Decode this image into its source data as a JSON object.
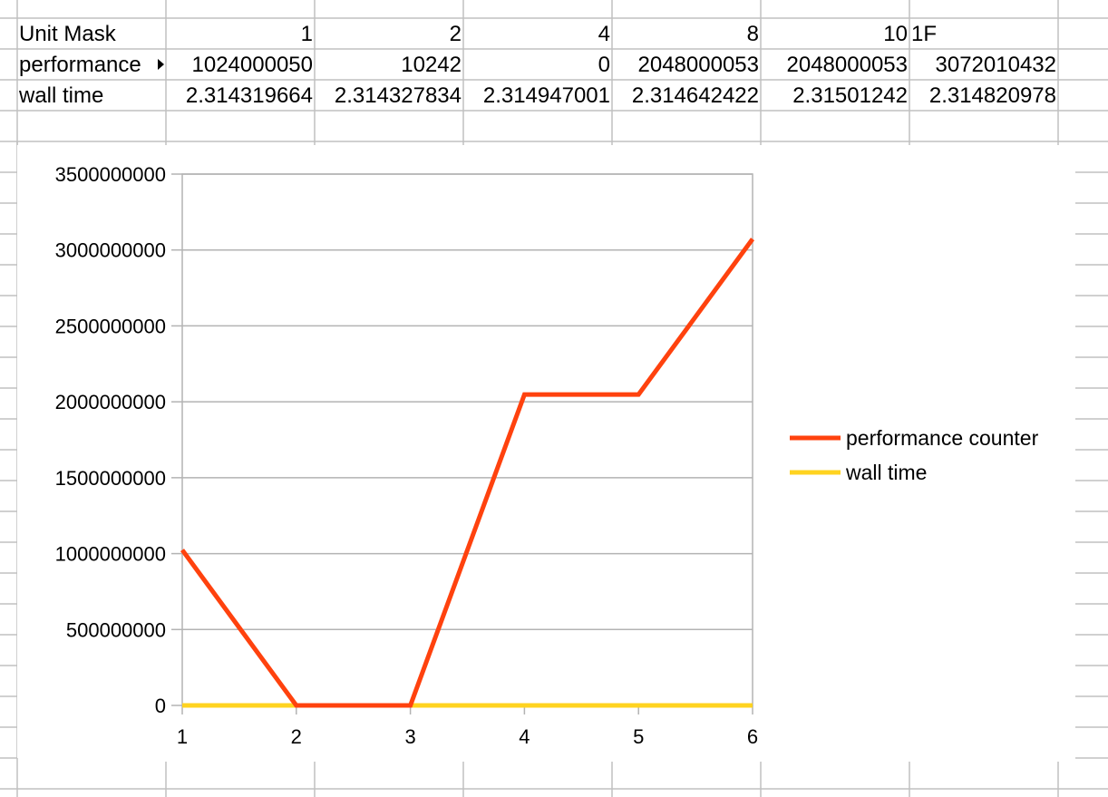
{
  "spreadsheet": {
    "rows": [
      {
        "label": "Unit Mask",
        "has_comment": false,
        "cells": [
          "1",
          "2",
          "4",
          "8",
          "10",
          "1F"
        ]
      },
      {
        "label": "performance",
        "has_comment": true,
        "cells": [
          "1024000050",
          "10242",
          "0",
          "2048000053",
          "2048000053",
          "3072010432"
        ]
      },
      {
        "label": "wall time",
        "has_comment": false,
        "cells": [
          "2.314319664",
          "2.314327834",
          "2.314947001",
          "2.314642422",
          "2.31501242",
          "2.314820978"
        ]
      }
    ]
  },
  "chart_data": {
    "type": "line",
    "title": "",
    "xlabel": "",
    "ylabel": "",
    "x": [
      1,
      2,
      3,
      4,
      5,
      6
    ],
    "x_tick_labels": [
      "1",
      "2",
      "3",
      "4",
      "5",
      "6"
    ],
    "ylim": [
      0,
      3500000000
    ],
    "y_tick_labels": [
      "0",
      "500000000",
      "1000000000",
      "1500000000",
      "2000000000",
      "2500000000",
      "3000000000",
      "3500000000"
    ],
    "y_ticks": [
      0,
      500000000,
      1000000000,
      1500000000,
      2000000000,
      2500000000,
      3000000000,
      3500000000
    ],
    "grid": true,
    "legend_position": "right",
    "series": [
      {
        "name": "performance counter",
        "color": "#ff420e",
        "values": [
          1024000050,
          10242,
          0,
          2048000053,
          2048000053,
          3072010432
        ]
      },
      {
        "name": "wall time",
        "color": "#ffd320",
        "values": [
          2.314319664,
          2.314327834,
          2.314947001,
          2.314642422,
          2.31501242,
          2.314820978
        ]
      }
    ]
  }
}
